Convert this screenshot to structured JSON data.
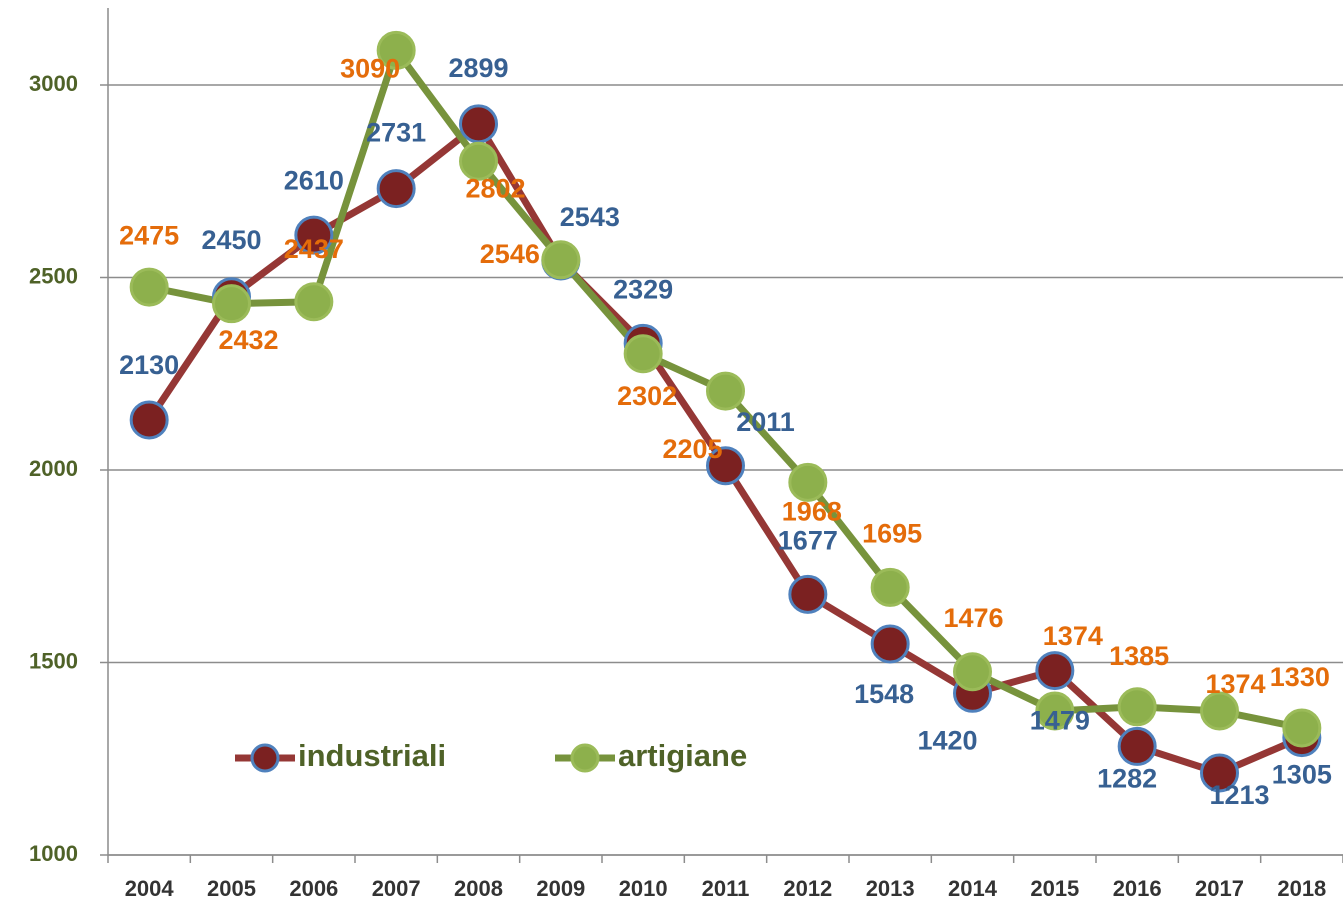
{
  "chart_data": {
    "type": "line",
    "categories": [
      "2004",
      "2005",
      "2006",
      "2007",
      "2008",
      "2009",
      "2010",
      "2011",
      "2012",
      "2013",
      "2014",
      "2015",
      "2016",
      "2017",
      "2018"
    ],
    "series": [
      {
        "name": "industriali",
        "color": "#953735",
        "values": [
          2130,
          2450,
          2610,
          2731,
          2899,
          2543,
          2329,
          2011,
          1677,
          1548,
          1420,
          1479,
          1282,
          1213,
          1305
        ]
      },
      {
        "name": "artigiane",
        "color": "#77933c",
        "values": [
          2475,
          2432,
          2437,
          3090,
          2802,
          2546,
          2302,
          2205,
          1968,
          1695,
          1476,
          1374,
          1385,
          1374,
          1330
        ]
      }
    ],
    "ylim": [
      1000,
      3200
    ],
    "yticks": [
      1000,
      1500,
      2000,
      2500,
      3000
    ],
    "grid": true
  }
}
